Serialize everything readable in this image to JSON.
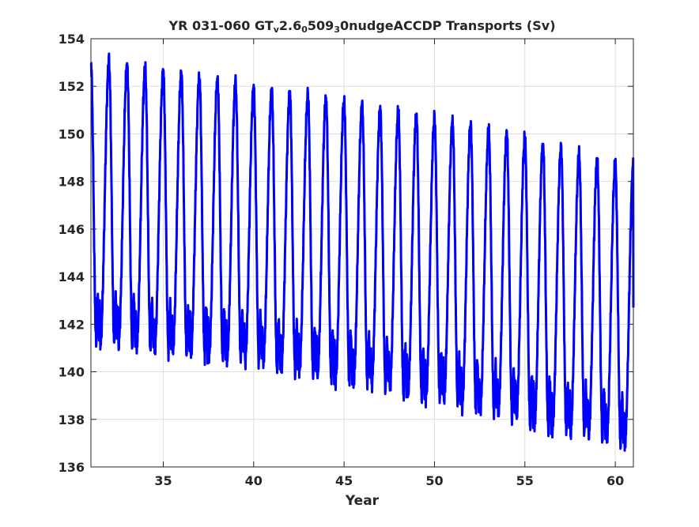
{
  "chart_data": {
    "type": "line",
    "title_parts": [
      {
        "text": "YR 031-060 GT",
        "sub": false
      },
      {
        "text": "v",
        "sub": true
      },
      {
        "text": "2.6",
        "sub": false
      },
      {
        "text": "0",
        "sub": true
      },
      {
        "text": "509",
        "sub": false
      },
      {
        "text": "3",
        "sub": true
      },
      {
        "text": "0nudgeACCDP Transports (Sv)",
        "sub": false
      }
    ],
    "xlabel": "Year",
    "ylabel": "",
    "xlim": [
      31,
      61
    ],
    "ylim": [
      136,
      154
    ],
    "xticks": [
      35,
      40,
      45,
      50,
      55,
      60
    ],
    "yticks": [
      136,
      138,
      140,
      142,
      144,
      146,
      148,
      150,
      152,
      154
    ],
    "grid": true,
    "series": [
      {
        "color": "#0000ff",
        "period_years": 1,
        "samples_per_year": 73,
        "x_start": 31.0,
        "x_end": 61.0,
        "yearly_peaks": [
          153.0,
          153.0,
          152.9,
          152.7,
          152.6,
          152.5,
          152.4,
          152.3,
          152.1,
          151.9,
          151.8,
          151.7,
          151.6,
          151.5,
          151.4,
          151.2,
          151.0,
          150.9,
          150.8,
          150.6,
          150.5,
          150.4,
          150.1,
          150.0,
          149.8,
          149.6,
          149.4,
          149.1,
          148.9,
          148.7
        ],
        "yearly_troughs": [
          141.2,
          141.1,
          141.0,
          140.9,
          140.8,
          140.7,
          140.6,
          140.5,
          140.4,
          140.3,
          140.1,
          140.0,
          139.8,
          139.6,
          139.5,
          139.4,
          139.2,
          139.0,
          138.9,
          138.8,
          138.5,
          138.3,
          138.2,
          138.0,
          137.7,
          137.6,
          137.4,
          137.3,
          137.1,
          136.9
        ],
        "end_value": 142.7
      }
    ]
  }
}
